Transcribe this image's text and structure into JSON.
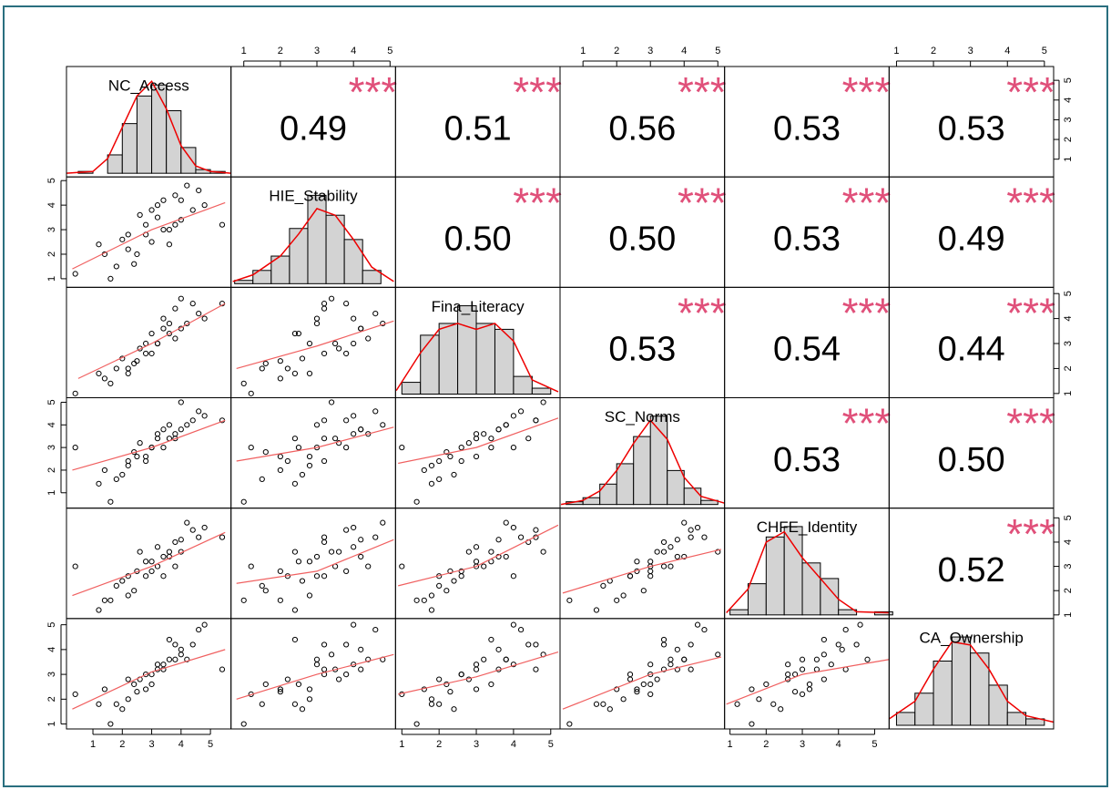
{
  "chart_data": {
    "type": "pairs",
    "variables": [
      {
        "name": "NC_Access",
        "lim": [
          0.1,
          5.7
        ],
        "ticks": [
          1,
          2,
          3,
          4,
          5
        ],
        "bins": [
          0.5,
          1,
          1.5,
          2,
          2.5,
          3,
          3.5,
          4,
          4.5,
          5,
          5.5
        ],
        "counts": [
          1,
          0,
          10,
          27,
          42,
          48,
          34,
          14,
          2,
          1
        ],
        "density": {
          "x": [
            0.1,
            1,
            1.5,
            2,
            2.5,
            3,
            3.5,
            4,
            4.5,
            5,
            5.7
          ],
          "y": [
            0,
            1,
            8,
            25,
            42,
            50,
            35,
            15,
            4,
            1,
            0
          ]
        }
      },
      {
        "name": "HIE_Stability",
        "lim": [
          0.65,
          5.15
        ],
        "ticks": [
          1,
          2,
          3,
          4,
          5
        ],
        "bins": [
          0.75,
          1.25,
          1.75,
          2.25,
          2.75,
          3.25,
          3.75,
          4.25,
          4.75
        ],
        "counts": [
          3,
          12,
          25,
          50,
          80,
          62,
          40,
          12
        ],
        "density": {
          "x": [
            0.7,
            1.25,
            2,
            2.5,
            3,
            3.5,
            4,
            4.5,
            5.1
          ],
          "y": [
            2,
            8,
            25,
            45,
            68,
            62,
            40,
            15,
            2
          ]
        }
      },
      {
        "name": "Fina_Literacy",
        "lim": [
          0.83,
          5.25
        ],
        "ticks": [
          1,
          2,
          3,
          4,
          5
        ],
        "bins": [
          1,
          1.5,
          2,
          2.5,
          3,
          3.5,
          4,
          4.5,
          5
        ],
        "counts": [
          10,
          50,
          60,
          75,
          60,
          55,
          15,
          5
        ],
        "density": {
          "x": [
            0.85,
            1.5,
            2,
            2.5,
            3,
            3.5,
            4,
            4.5,
            5.2
          ],
          "y": [
            3,
            35,
            55,
            60,
            55,
            60,
            45,
            12,
            2
          ]
        }
      },
      {
        "name": "SC_Norms",
        "lim": [
          0.32,
          5.2
        ],
        "ticks": [
          1,
          2,
          3,
          4,
          5
        ],
        "bins": [
          0.5,
          1,
          1.5,
          2,
          2.5,
          3,
          3.5,
          4,
          4.5,
          5
        ],
        "counts": [
          2,
          5,
          15,
          30,
          50,
          65,
          25,
          12,
          3
        ],
        "density": {
          "x": [
            0.35,
            1,
            1.5,
            2,
            2.5,
            3,
            3.5,
            4,
            4.5,
            5.2
          ],
          "y": [
            0,
            3,
            10,
            25,
            45,
            62,
            48,
            20,
            6,
            1
          ]
        }
      },
      {
        "name": "CHFE_Identity",
        "lim": [
          0.85,
          5.4
        ],
        "ticks": [
          1,
          2,
          3,
          4,
          5
        ],
        "bins": [
          1,
          1.5,
          2,
          2.5,
          3,
          3.5,
          4,
          4.5,
          5,
          5.5
        ],
        "counts": [
          5,
          30,
          75,
          85,
          50,
          35,
          5,
          0,
          3
        ],
        "density": {
          "x": [
            0.9,
            1.5,
            2,
            2.5,
            3,
            3.5,
            4,
            4.5,
            5.4
          ],
          "y": [
            2,
            25,
            70,
            80,
            55,
            35,
            15,
            3,
            2
          ]
        }
      },
      {
        "name": "CA_Ownership",
        "lim": [
          0.8,
          5.25
        ],
        "ticks": [
          1,
          2,
          3,
          4,
          5
        ],
        "bins": [
          1,
          1.5,
          2,
          2.5,
          3,
          3.5,
          4,
          4.5,
          5
        ],
        "counts": [
          8,
          20,
          40,
          55,
          45,
          25,
          8,
          4
        ],
        "density": {
          "x": [
            0.8,
            1.5,
            2,
            2.5,
            3,
            3.5,
            4,
            4.5,
            5.25
          ],
          "y": [
            4,
            15,
            35,
            52,
            50,
            35,
            15,
            6,
            2
          ]
        }
      }
    ],
    "correlations": [
      [
        {
          "value": 0.49,
          "label": "0.49",
          "stars": "***"
        },
        {
          "value": 0.51,
          "label": "0.51",
          "stars": "***"
        },
        {
          "value": 0.56,
          "label": "0.56",
          "stars": "***"
        },
        {
          "value": 0.53,
          "label": "0.53",
          "stars": "***"
        },
        {
          "value": 0.53,
          "label": "0.53",
          "stars": "***"
        }
      ],
      [
        {
          "value": 0.5,
          "label": "0.50",
          "stars": "***"
        },
        {
          "value": 0.5,
          "label": "0.50",
          "stars": "***"
        },
        {
          "value": 0.53,
          "label": "0.53",
          "stars": "***"
        },
        {
          "value": 0.49,
          "label": "0.49",
          "stars": "***"
        }
      ],
      [
        {
          "value": 0.53,
          "label": "0.53",
          "stars": "***"
        },
        {
          "value": 0.54,
          "label": "0.54",
          "stars": "***"
        },
        {
          "value": 0.44,
          "label": "0.44",
          "stars": "***"
        }
      ],
      [
        {
          "value": 0.53,
          "label": "0.53",
          "stars": "***"
        },
        {
          "value": 0.5,
          "label": "0.50",
          "stars": "***"
        }
      ],
      [
        {
          "value": 0.52,
          "label": "0.52",
          "stars": "***"
        }
      ]
    ],
    "observations": [
      [
        3.2,
        3.5,
        3.0,
        3.4,
        3.0,
        3.2
      ],
      [
        2.5,
        2.0,
        2.3,
        2.6,
        2.8,
        2.3
      ],
      [
        4.0,
        4.2,
        3.6,
        3.8,
        4.1,
        4.0
      ],
      [
        1.8,
        1.5,
        2.0,
        1.6,
        2.2,
        1.8
      ],
      [
        3.6,
        3.0,
        3.8,
        4.0,
        3.4,
        3.6
      ],
      [
        2.8,
        3.2,
        2.6,
        2.4,
        2.6,
        3.0
      ],
      [
        4.4,
        3.8,
        4.6,
        4.2,
        4.5,
        4.2
      ],
      [
        2.2,
        2.8,
        1.8,
        2.2,
        1.8,
        2.0
      ],
      [
        3.0,
        2.5,
        3.4,
        3.0,
        3.2,
        2.6
      ],
      [
        3.8,
        4.4,
        3.2,
        3.6,
        3.0,
        3.6
      ],
      [
        1.4,
        2.0,
        1.6,
        2.0,
        1.6,
        2.4
      ],
      [
        2.6,
        3.6,
        2.8,
        3.2,
        3.6,
        2.8
      ],
      [
        3.4,
        3.0,
        4.0,
        3.0,
        2.6,
        3.4
      ],
      [
        4.6,
        4.6,
        4.2,
        4.6,
        4.2,
        4.8
      ],
      [
        2.0,
        2.6,
        2.4,
        1.8,
        2.4,
        1.6
      ],
      [
        3.2,
        4.0,
        3.0,
        3.6,
        3.8,
        3.4
      ],
      [
        3.8,
        3.2,
        4.4,
        3.4,
        4.0,
        4.2
      ],
      [
        2.4,
        1.6,
        2.2,
        2.8,
        2.0,
        2.6
      ],
      [
        0.4,
        1.2,
        1.0,
        3.0,
        3.0,
        2.2
      ],
      [
        5.4,
        3.2,
        4.6,
        4.2,
        4.2,
        3.2
      ],
      [
        3.0,
        3.8,
        2.6,
        3.0,
        2.8,
        3.0
      ],
      [
        4.2,
        4.8,
        3.8,
        4.0,
        4.8,
        3.6
      ],
      [
        1.6,
        1.0,
        1.4,
        0.6,
        1.6,
        1.0
      ],
      [
        3.6,
        2.4,
        3.4,
        3.4,
        3.6,
        4.4
      ],
      [
        2.8,
        2.8,
        3.0,
        2.6,
        3.2,
        2.4
      ],
      [
        4.0,
        3.4,
        4.8,
        5.0,
        3.6,
        3.8
      ],
      [
        2.2,
        2.2,
        2.0,
        2.4,
        2.6,
        2.8
      ],
      [
        3.4,
        4.2,
        3.6,
        3.8,
        3.4,
        3.2
      ],
      [
        1.2,
        2.4,
        1.8,
        1.4,
        1.2,
        1.8
      ],
      [
        4.8,
        4.0,
        4.0,
        4.4,
        4.6,
        5.0
      ]
    ],
    "fits": [
      [
        {
          "x": [
            0.3,
            3,
            5.5
          ],
          "y": [
            1.4,
            3.0,
            4.1
          ]
        }
      ],
      [
        {
          "x": [
            0.5,
            3,
            5.5
          ],
          "y": [
            1.6,
            3.0,
            4.6
          ]
        },
        {
          "x": [
            0.8,
            3,
            5.1
          ],
          "y": [
            2.0,
            2.9,
            3.9
          ]
        }
      ],
      [
        {
          "x": [
            0.3,
            3,
            5.5
          ],
          "y": [
            2.0,
            3.0,
            4.2
          ]
        },
        {
          "x": [
            0.8,
            3,
            5.1
          ],
          "y": [
            2.4,
            3.0,
            3.9
          ]
        },
        {
          "x": [
            0.9,
            3,
            5.2
          ],
          "y": [
            2.3,
            3.0,
            4.3
          ]
        }
      ],
      [
        {
          "x": [
            0.3,
            3,
            5.5
          ],
          "y": [
            1.8,
            3.0,
            4.4
          ]
        },
        {
          "x": [
            0.8,
            3,
            5.1
          ],
          "y": [
            2.3,
            2.8,
            4.1
          ]
        },
        {
          "x": [
            0.9,
            3,
            5.2
          ],
          "y": [
            2.2,
            3.0,
            4.7
          ]
        },
        {
          "x": [
            0.4,
            3,
            5.1
          ],
          "y": [
            1.9,
            3.0,
            3.7
          ]
        }
      ],
      [
        {
          "x": [
            0.3,
            3,
            5.5
          ],
          "y": [
            1.6,
            3.1,
            4.0
          ]
        },
        {
          "x": [
            0.8,
            3,
            5.1
          ],
          "y": [
            2.0,
            3.0,
            3.8
          ]
        },
        {
          "x": [
            0.9,
            3,
            5.2
          ],
          "y": [
            2.2,
            2.9,
            3.9
          ]
        },
        {
          "x": [
            0.4,
            3,
            5.1
          ],
          "y": [
            1.6,
            3.0,
            3.7
          ]
        },
        {
          "x": [
            0.9,
            3,
            5.4
          ],
          "y": [
            1.8,
            3.0,
            3.6
          ]
        }
      ]
    ]
  }
}
